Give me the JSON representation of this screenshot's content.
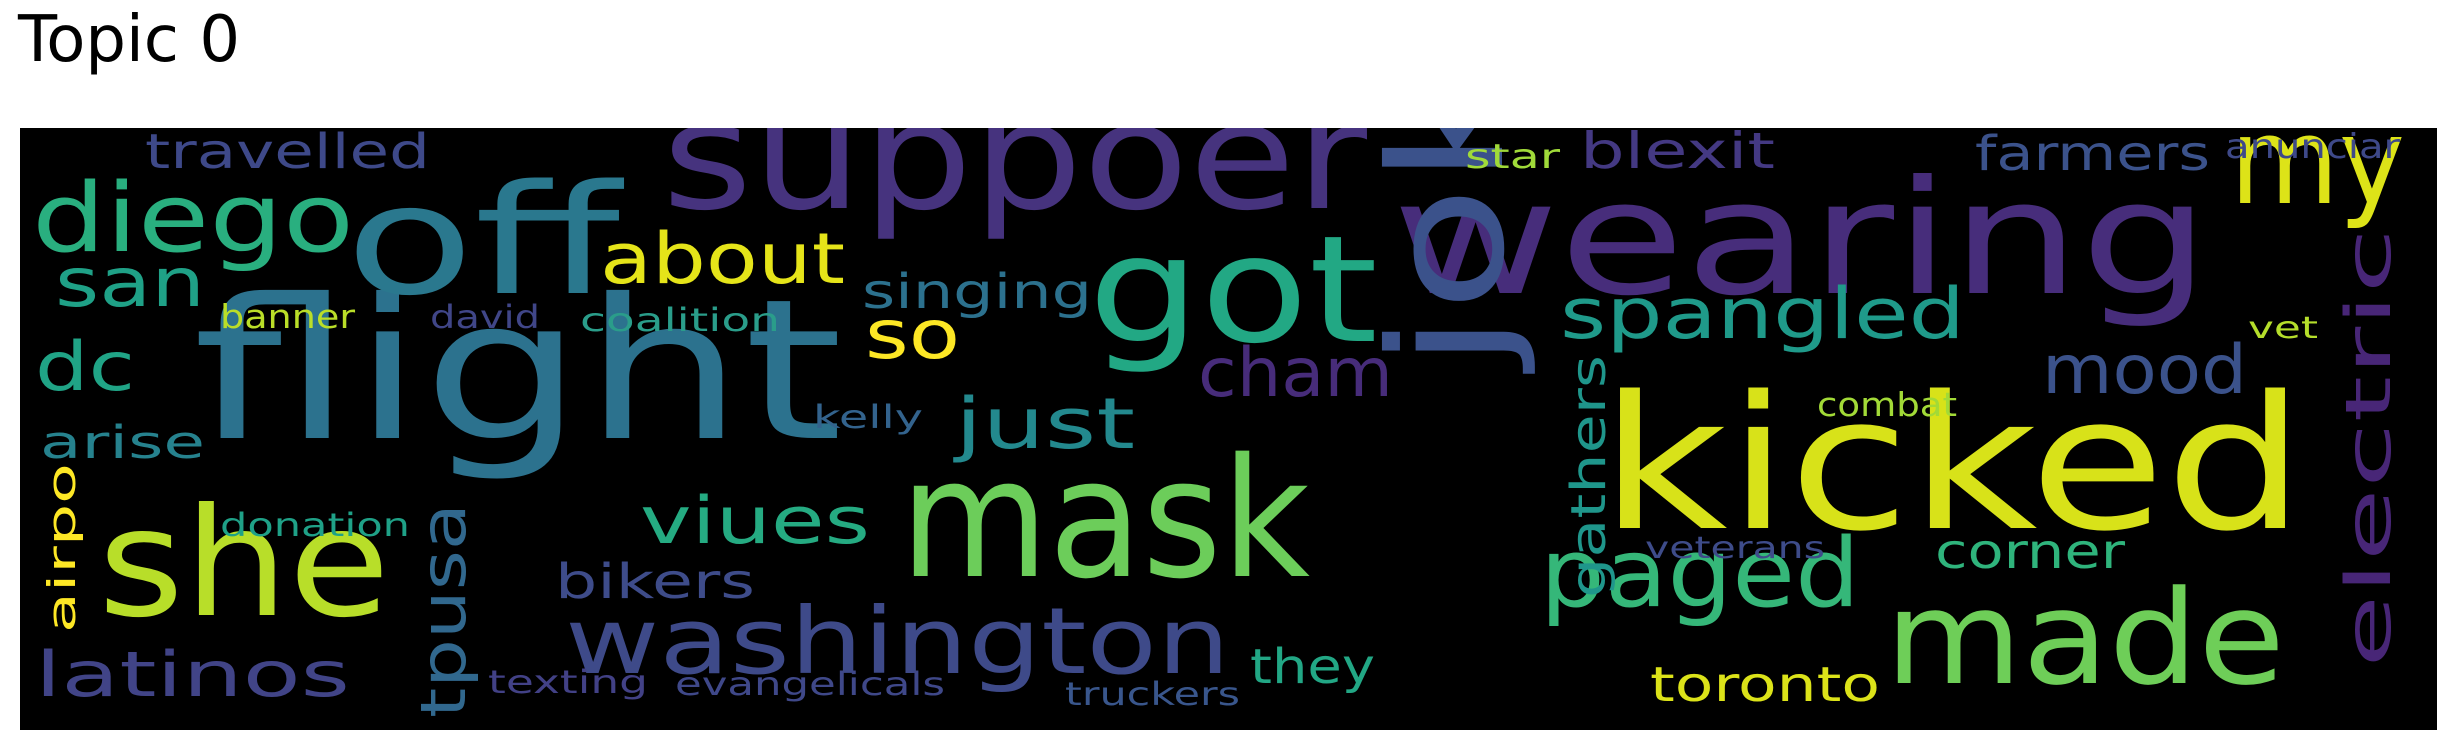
{
  "title": "Topic 0",
  "words": [
    {
      "text": "suppoer",
      "color": "#46337e"
    },
    {
      "text": "wearing",
      "color": "#472d7b"
    },
    {
      "text": "flight",
      "color": "#2c728e"
    },
    {
      "text": "kicked",
      "color": "#d8e219"
    },
    {
      "text": "mask",
      "color": "#6ccd5a"
    },
    {
      "text": "she",
      "color": "#b8de29"
    },
    {
      "text": "joke",
      "color": "#3b528b"
    },
    {
      "text": "off",
      "color": "#2a788e"
    },
    {
      "text": "got",
      "color": "#22a884"
    },
    {
      "text": "made",
      "color": "#6ece58"
    },
    {
      "text": "my",
      "color": "#dde318"
    },
    {
      "text": "diego",
      "color": "#29af7f"
    },
    {
      "text": "washington",
      "color": "#3e4a89"
    },
    {
      "text": "paged",
      "color": "#35b779"
    },
    {
      "text": "about",
      "color": "#e5e419"
    },
    {
      "text": "spangled",
      "color": "#1f9a8a"
    },
    {
      "text": "san",
      "color": "#1fa187"
    },
    {
      "text": "dc",
      "color": "#20a486"
    },
    {
      "text": "so",
      "color": "#fde725"
    },
    {
      "text": "cham",
      "color": "#472c7a"
    },
    {
      "text": "mood",
      "color": "#3b528b"
    },
    {
      "text": "viues",
      "color": "#25ab82"
    },
    {
      "text": "just",
      "color": "#23898e"
    },
    {
      "text": "electric",
      "color": "#482677"
    },
    {
      "text": "latinos",
      "color": "#414487"
    },
    {
      "text": "tpusa",
      "color": "#31688e"
    },
    {
      "text": "gathers",
      "color": "#1f968b"
    },
    {
      "text": "travelled",
      "color": "#3e4989"
    },
    {
      "text": "blexit",
      "color": "#443983"
    },
    {
      "text": "farmers",
      "color": "#3b528b"
    },
    {
      "text": "singing",
      "color": "#2c718e"
    },
    {
      "text": "corner",
      "color": "#2fb47c"
    },
    {
      "text": "toronto",
      "color": "#dce319"
    },
    {
      "text": "they",
      "color": "#22a785"
    },
    {
      "text": "bikers",
      "color": "#3e4c8a"
    },
    {
      "text": "arise",
      "color": "#26828e"
    },
    {
      "text": "airpo",
      "color": "#fde725"
    },
    {
      "text": "anunciar",
      "color": "#3e4989"
    },
    {
      "text": "star",
      "color": "#a0da39"
    },
    {
      "text": "banner",
      "color": "#bade28"
    },
    {
      "text": "david",
      "color": "#404688"
    },
    {
      "text": "coalition",
      "color": "#2a9d8a"
    },
    {
      "text": "kelly",
      "color": "#33638d"
    },
    {
      "text": "donation",
      "color": "#1fa187"
    },
    {
      "text": "combat",
      "color": "#a2da37"
    },
    {
      "text": "vet",
      "color": "#b5de2b"
    },
    {
      "text": "veterans",
      "color": "#3e4c8a"
    },
    {
      "text": "texting",
      "color": "#424186"
    },
    {
      "text": "evangelicals",
      "color": "#3f4889"
    },
    {
      "text": "truckers",
      "color": "#39568c"
    }
  ]
}
